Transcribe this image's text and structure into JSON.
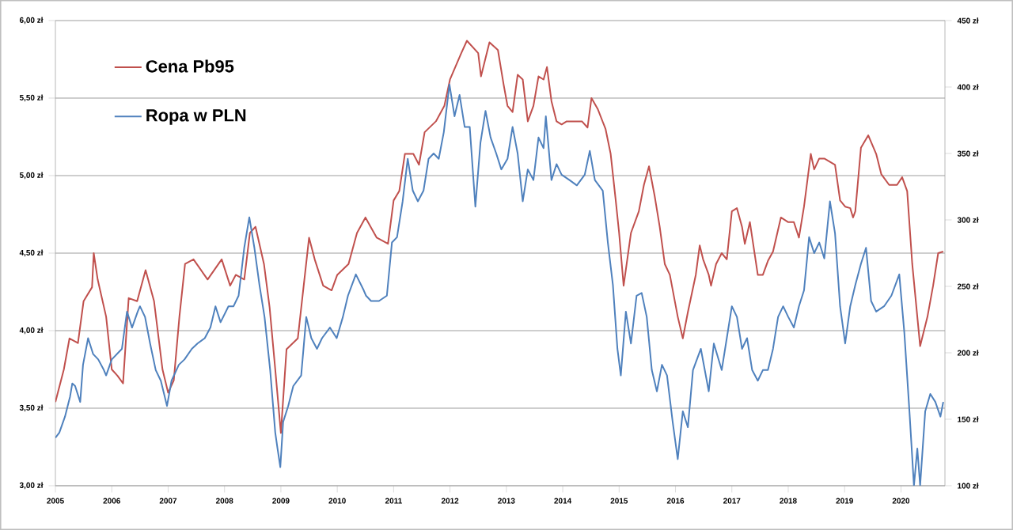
{
  "chart_data": {
    "type": "line",
    "xlim": [
      2005,
      2020.78
    ],
    "xticks": [
      2005,
      2006,
      2007,
      2008,
      2009,
      2010,
      2011,
      2012,
      2013,
      2014,
      2015,
      2016,
      2017,
      2018,
      2019,
      2020
    ],
    "ylim": [
      3,
      6
    ],
    "yticks": [
      {
        "value": 3,
        "label": "3,00 zł"
      },
      {
        "value": 3.5,
        "label": "3,50 zł"
      },
      {
        "value": 4,
        "label": "4,00 zł"
      },
      {
        "value": 4.5,
        "label": "4,50 zł"
      },
      {
        "value": 5,
        "label": "5,00 zł"
      },
      {
        "value": 5.5,
        "label": "5,50 zł"
      },
      {
        "value": 6,
        "label": "6,00 zł"
      }
    ],
    "y2lim": [
      100,
      450
    ],
    "y2ticks": [
      {
        "value": 100,
        "label": "100 zł"
      },
      {
        "value": 150,
        "label": "150 zł"
      },
      {
        "value": 200,
        "label": "200 zł"
      },
      {
        "value": 250,
        "label": "250 zł"
      },
      {
        "value": 300,
        "label": "300 zł"
      },
      {
        "value": 350,
        "label": "350 zł"
      },
      {
        "value": 400,
        "label": "400 zł"
      },
      {
        "value": 450,
        "label": "450 zł"
      }
    ],
    "grid": "y",
    "legend": "top left",
    "series": [
      {
        "name": "Cena Pb95",
        "color": "#c0504d",
        "x": [
          2005.0,
          2005.15,
          2005.25,
          2005.4,
          2005.5,
          2005.65,
          2005.68,
          2005.75,
          2005.9,
          2006.0,
          2006.1,
          2006.2,
          2006.3,
          2006.45,
          2006.6,
          2006.75,
          2006.9,
          2007.0,
          2007.1,
          2007.2,
          2007.3,
          2007.45,
          2007.7,
          2007.95,
          2008.1,
          2008.2,
          2008.35,
          2008.45,
          2008.55,
          2008.7,
          2008.8,
          2008.9,
          2009.0,
          2009.1,
          2009.3,
          2009.5,
          2009.6,
          2009.75,
          2009.9,
          2010.0,
          2010.2,
          2010.35,
          2010.5,
          2010.7,
          2010.9,
          2011.0,
          2011.1,
          2011.2,
          2011.35,
          2011.45,
          2011.55,
          2011.75,
          2011.9,
          2012.0,
          2012.2,
          2012.3,
          2012.5,
          2012.55,
          2012.7,
          2012.85,
          2012.95,
          2013.02,
          2013.11,
          2013.2,
          2013.29,
          2013.38,
          2013.48,
          2013.57,
          2013.66,
          2013.72,
          2013.8,
          2013.89,
          2013.98,
          2014.07,
          2014.21,
          2014.34,
          2014.44,
          2014.51,
          2014.62,
          2014.76,
          2014.85,
          2014.94,
          2015.0,
          2015.08,
          2015.21,
          2015.35,
          2015.44,
          2015.53,
          2015.63,
          2015.72,
          2015.81,
          2015.9,
          2016.04,
          2016.13,
          2016.22,
          2016.36,
          2016.43,
          2016.49,
          2016.59,
          2016.63,
          2016.72,
          2016.82,
          2016.91,
          2017.0,
          2017.09,
          2017.18,
          2017.23,
          2017.32,
          2017.46,
          2017.55,
          2017.64,
          2017.73,
          2017.87,
          2018.0,
          2018.1,
          2018.19,
          2018.28,
          2018.4,
          2018.46,
          2018.55,
          2018.64,
          2018.83,
          2018.92,
          2019.01,
          2019.1,
          2019.15,
          2019.19,
          2019.29,
          2019.42,
          2019.56,
          2019.65,
          2019.79,
          2019.93,
          2020.02,
          2020.11,
          2020.2,
          2020.34,
          2020.47,
          2020.57,
          2020.66,
          2020.75
        ],
        "values": [
          3.54,
          3.75,
          3.95,
          3.92,
          4.19,
          4.28,
          4.5,
          4.33,
          4.09,
          3.75,
          3.71,
          3.66,
          4.21,
          4.19,
          4.39,
          4.19,
          3.75,
          3.6,
          3.68,
          4.09,
          4.43,
          4.46,
          4.33,
          4.46,
          4.29,
          4.36,
          4.33,
          4.63,
          4.67,
          4.43,
          4.15,
          3.75,
          3.34,
          3.88,
          3.95,
          4.6,
          4.46,
          4.29,
          4.26,
          4.36,
          4.43,
          4.63,
          4.73,
          4.6,
          4.56,
          4.84,
          4.9,
          5.14,
          5.14,
          5.07,
          5.28,
          5.35,
          5.45,
          5.62,
          5.79,
          5.87,
          5.79,
          5.64,
          5.86,
          5.81,
          5.59,
          5.45,
          5.41,
          5.65,
          5.62,
          5.35,
          5.45,
          5.64,
          5.62,
          5.7,
          5.48,
          5.35,
          5.33,
          5.35,
          5.35,
          5.35,
          5.31,
          5.5,
          5.43,
          5.3,
          5.14,
          4.84,
          4.63,
          4.29,
          4.63,
          4.77,
          4.94,
          5.06,
          4.87,
          4.67,
          4.43,
          4.36,
          4.09,
          3.95,
          4.12,
          4.36,
          4.55,
          4.46,
          4.36,
          4.29,
          4.43,
          4.5,
          4.46,
          4.77,
          4.79,
          4.67,
          4.56,
          4.7,
          4.36,
          4.36,
          4.45,
          4.51,
          4.73,
          4.7,
          4.7,
          4.6,
          4.8,
          5.14,
          5.04,
          5.11,
          5.11,
          5.07,
          4.84,
          4.8,
          4.79,
          4.73,
          4.77,
          5.18,
          5.26,
          5.14,
          5.01,
          4.94,
          4.94,
          4.99,
          4.9,
          4.43,
          3.9,
          4.09,
          4.29,
          4.5,
          4.51
        ]
      },
      {
        "name": "Ropa w PLN",
        "color": "#4f81bd",
        "axis": "y2",
        "x": [
          2005.0,
          2005.07,
          2005.17,
          2005.26,
          2005.3,
          2005.35,
          2005.44,
          2005.49,
          2005.58,
          2005.67,
          2005.76,
          2005.86,
          2005.9,
          2006.0,
          2006.09,
          2006.18,
          2006.27,
          2006.36,
          2006.46,
          2006.5,
          2006.59,
          2006.68,
          2006.78,
          2006.87,
          2006.98,
          2007.06,
          2007.19,
          2007.29,
          2007.42,
          2007.52,
          2007.65,
          2007.75,
          2007.84,
          2007.93,
          2008.07,
          2008.16,
          2008.25,
          2008.35,
          2008.44,
          2008.53,
          2008.62,
          2008.71,
          2008.81,
          2008.9,
          2008.94,
          2008.99,
          2009.04,
          2009.13,
          2009.22,
          2009.36,
          2009.45,
          2009.54,
          2009.64,
          2009.73,
          2009.87,
          2009.99,
          2010.1,
          2010.19,
          2010.33,
          2010.47,
          2010.51,
          2010.6,
          2010.74,
          2010.88,
          2010.97,
          2011.06,
          2011.16,
          2011.25,
          2011.34,
          2011.43,
          2011.53,
          2011.62,
          2011.71,
          2011.8,
          2011.89,
          2011.99,
          2012.08,
          2012.17,
          2012.26,
          2012.35,
          2012.45,
          2012.54,
          2012.63,
          2012.72,
          2012.82,
          2012.91,
          2013.02,
          2013.11,
          2013.2,
          2013.29,
          2013.38,
          2013.48,
          2013.57,
          2013.66,
          2013.7,
          2013.8,
          2013.89,
          2013.98,
          2014.12,
          2014.25,
          2014.39,
          2014.48,
          2014.57,
          2014.71,
          2014.8,
          2014.89,
          2014.97,
          2015.03,
          2015.12,
          2015.21,
          2015.31,
          2015.4,
          2015.49,
          2015.58,
          2015.67,
          2015.76,
          2015.85,
          2015.95,
          2016.04,
          2016.13,
          2016.22,
          2016.31,
          2016.45,
          2016.59,
          2016.68,
          2016.82,
          2016.91,
          2017.0,
          2017.09,
          2017.18,
          2017.27,
          2017.36,
          2017.46,
          2017.55,
          2017.64,
          2017.73,
          2017.82,
          2017.91,
          2018.0,
          2018.1,
          2018.19,
          2018.28,
          2018.37,
          2018.46,
          2018.55,
          2018.64,
          2018.74,
          2018.83,
          2018.92,
          2019.01,
          2019.1,
          2019.19,
          2019.29,
          2019.38,
          2019.47,
          2019.56,
          2019.7,
          2019.83,
          2019.97,
          2020.06,
          2020.15,
          2020.23,
          2020.29,
          2020.34,
          2020.43,
          2020.52,
          2020.61,
          2020.7,
          2020.75
        ],
        "values": [
          136,
          140,
          152,
          167,
          177,
          175,
          163,
          191,
          211,
          199,
          195,
          187,
          183,
          195,
          199,
          203,
          231,
          219,
          231,
          235,
          227,
          207,
          187,
          179,
          160,
          179,
          191,
          195,
          203,
          207,
          211,
          219,
          235,
          223,
          235,
          235,
          243,
          279,
          302,
          279,
          251,
          227,
          187,
          140,
          128,
          114,
          148,
          160,
          175,
          183,
          227,
          211,
          203,
          211,
          219,
          211,
          227,
          243,
          259,
          247,
          243,
          239,
          239,
          243,
          283,
          287,
          314,
          346,
          322,
          314,
          322,
          346,
          350,
          346,
          366,
          402,
          378,
          394,
          370,
          370,
          310,
          358,
          382,
          362,
          350,
          338,
          346,
          370,
          350,
          314,
          338,
          330,
          362,
          354,
          378,
          330,
          342,
          334,
          330,
          326,
          334,
          352,
          330,
          322,
          283,
          251,
          203,
          183,
          231,
          207,
          243,
          245,
          227,
          187,
          171,
          191,
          183,
          148,
          120,
          156,
          144,
          187,
          203,
          171,
          207,
          187,
          211,
          235,
          227,
          203,
          211,
          187,
          179,
          187,
          187,
          203,
          227,
          235,
          227,
          219,
          235,
          247,
          287,
          275,
          283,
          271,
          314,
          290,
          235,
          207,
          235,
          251,
          267,
          279,
          239,
          231,
          235,
          243,
          259,
          215,
          156,
          100,
          128,
          100,
          156,
          169,
          163,
          152,
          163
        ]
      }
    ]
  }
}
